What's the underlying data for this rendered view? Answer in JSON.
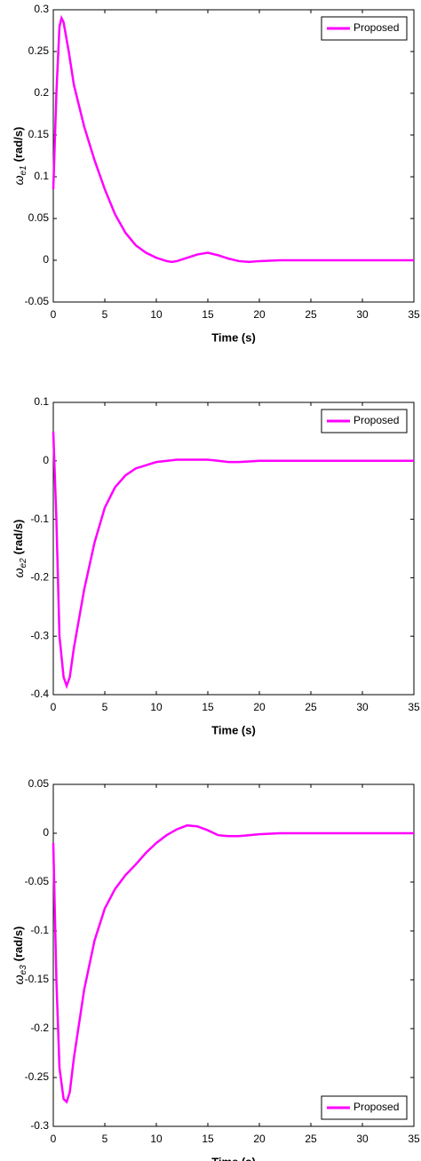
{
  "chart_data": [
    {
      "type": "line",
      "xlabel": "Time (s)",
      "ylabel_symbol": "ω",
      "ylabel_subscript": "e1",
      "ylabel_unit": "(rad/s)",
      "x": [
        0,
        0.3,
        0.6,
        0.8,
        1,
        1.5,
        2,
        3,
        4,
        5,
        6,
        7,
        8,
        9,
        10,
        11,
        11.5,
        12,
        13,
        14,
        15,
        16,
        17,
        18,
        19,
        20,
        22,
        25,
        30,
        35
      ],
      "series": [
        {
          "name": "Proposed",
          "color": "#ff00ff",
          "values": [
            0.085,
            0.2,
            0.28,
            0.29,
            0.285,
            0.25,
            0.21,
            0.16,
            0.12,
            0.085,
            0.055,
            0.033,
            0.018,
            0.009,
            0.003,
            -0.001,
            -0.002,
            -0.001,
            0.003,
            0.007,
            0.009,
            0.006,
            0.002,
            -0.001,
            -0.002,
            -0.001,
            0,
            0,
            0,
            0
          ]
        }
      ],
      "xlim": [
        0,
        35
      ],
      "xticks": [
        0,
        5,
        10,
        15,
        20,
        25,
        30,
        35
      ],
      "ylim": [
        -0.05,
        0.3
      ],
      "yticks": [
        -0.05,
        0,
        0.05,
        0.1,
        0.15,
        0.2,
        0.25,
        0.3
      ],
      "legend": "top-right"
    },
    {
      "type": "line",
      "xlabel": "Time (s)",
      "ylabel_symbol": "ω",
      "ylabel_subscript": "e2",
      "ylabel_unit": "(rad/s)",
      "x": [
        0,
        0.3,
        0.6,
        1,
        1.3,
        1.6,
        2,
        3,
        4,
        5,
        6,
        7,
        8,
        10,
        12,
        15,
        16,
        17,
        18,
        19,
        20,
        25,
        30,
        35
      ],
      "series": [
        {
          "name": "Proposed",
          "color": "#ff00ff",
          "values": [
            0.05,
            -0.1,
            -0.3,
            -0.37,
            -0.385,
            -0.37,
            -0.32,
            -0.22,
            -0.14,
            -0.08,
            -0.045,
            -0.025,
            -0.013,
            -0.002,
            0.002,
            0.002,
            0,
            -0.002,
            -0.002,
            -0.001,
            0,
            0,
            0,
            0
          ]
        }
      ],
      "xlim": [
        0,
        35
      ],
      "xticks": [
        0,
        5,
        10,
        15,
        20,
        25,
        30,
        35
      ],
      "ylim": [
        -0.4,
        0.1
      ],
      "yticks": [
        -0.4,
        -0.3,
        -0.2,
        -0.1,
        0,
        0.1
      ],
      "legend": "top-right"
    },
    {
      "type": "line",
      "xlabel": "Time (s)",
      "ylabel_symbol": "ω",
      "ylabel_subscript": "e3",
      "ylabel_unit": "(rad/s)",
      "x": [
        0,
        0.3,
        0.6,
        1,
        1.3,
        1.6,
        2,
        3,
        4,
        5,
        6,
        7,
        8,
        9,
        10,
        11,
        12,
        13,
        14,
        15,
        16,
        17,
        18,
        19,
        20,
        22,
        25,
        30,
        35
      ],
      "series": [
        {
          "name": "Proposed",
          "color": "#ff00ff",
          "values": [
            -0.01,
            -0.15,
            -0.24,
            -0.272,
            -0.275,
            -0.265,
            -0.23,
            -0.16,
            -0.11,
            -0.077,
            -0.057,
            -0.043,
            -0.032,
            -0.02,
            -0.01,
            -0.002,
            0.004,
            0.008,
            0.007,
            0.003,
            -0.002,
            -0.003,
            -0.003,
            -0.002,
            -0.001,
            0,
            0,
            0,
            0
          ]
        }
      ],
      "xlim": [
        0,
        35
      ],
      "xticks": [
        0,
        5,
        10,
        15,
        20,
        25,
        30,
        35
      ],
      "ylim": [
        -0.3,
        0.05
      ],
      "yticks": [
        -0.3,
        -0.25,
        -0.2,
        -0.15,
        -0.1,
        -0.05,
        0,
        0.05
      ],
      "legend": "bottom-right"
    }
  ]
}
